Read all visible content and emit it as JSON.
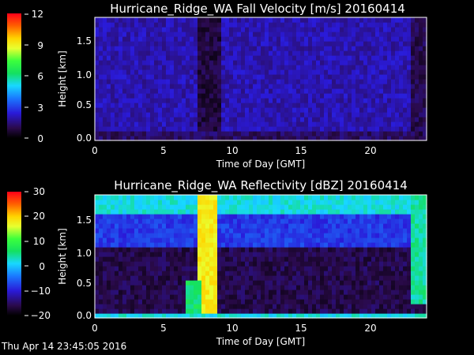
{
  "timestamp": "Thu Apr 14 23:45:05 2016",
  "chart_data": [
    {
      "type": "heatmap",
      "title": "Hurricane_Ridge_WA Fall Velocity [m/s] 20160414",
      "xlabel": "Time of Day [GMT]",
      "ylabel": "Height [km]",
      "xlim": [
        0,
        24
      ],
      "ylim": [
        0,
        1.85
      ],
      "xticks": [
        "0",
        "5",
        "10",
        "15",
        "20"
      ],
      "yticks": [
        "0.0",
        "0.5",
        "1.0",
        "1.5"
      ],
      "colorbar": {
        "ticks": [
          "12",
          "9",
          "6",
          "3",
          "0"
        ],
        "range": [
          0,
          12
        ]
      },
      "field": {
        "background_value": 2.0,
        "features": [
          {
            "x_range": [
              7.5,
              9.0
            ],
            "y_range": [
              0,
              1.85
            ],
            "value": 0.8
          },
          {
            "x_range": [
              0,
              24
            ],
            "y_range": [
              0,
              0.12
            ],
            "value": 1.2
          },
          {
            "x_range": [
              23.0,
              24.0
            ],
            "y_range": [
              0,
              1.85
            ],
            "value": 1.0
          }
        ]
      }
    },
    {
      "type": "heatmap",
      "title": "Hurricane_Ridge_WA Reflectivity [dBZ] 20160414",
      "xlabel": "Time of Day [GMT]",
      "ylabel": "Height [km]",
      "xlim": [
        0,
        24
      ],
      "ylim": [
        0,
        1.85
      ],
      "xticks": [
        "0",
        "5",
        "10",
        "15",
        "20"
      ],
      "yticks": [
        "0.0",
        "0.5",
        "1.0",
        "1.5"
      ],
      "colorbar": {
        "ticks": [
          "30",
          "20",
          "10",
          "0",
          "−10",
          "−20"
        ],
        "range": [
          -20,
          30
        ]
      },
      "field": {
        "background_value": -16,
        "features": [
          {
            "x_range": [
              0,
              24
            ],
            "y_range": [
              1.6,
              1.85
            ],
            "value": 2
          },
          {
            "x_range": [
              0,
              24
            ],
            "y_range": [
              1.1,
              1.6
            ],
            "value": -8
          },
          {
            "x_range": [
              7.5,
              8.8
            ],
            "y_range": [
              0,
              1.85
            ],
            "value": 18
          },
          {
            "x_range": [
              6.5,
              7.6
            ],
            "y_range": [
              0,
              0.55
            ],
            "value": 6
          },
          {
            "x_range": [
              22.9,
              24.0
            ],
            "y_range": [
              0.2,
              1.85
            ],
            "value": 4
          },
          {
            "x_range": [
              0,
              24
            ],
            "y_range": [
              0,
              0.05
            ],
            "value": 2
          }
        ]
      }
    }
  ]
}
